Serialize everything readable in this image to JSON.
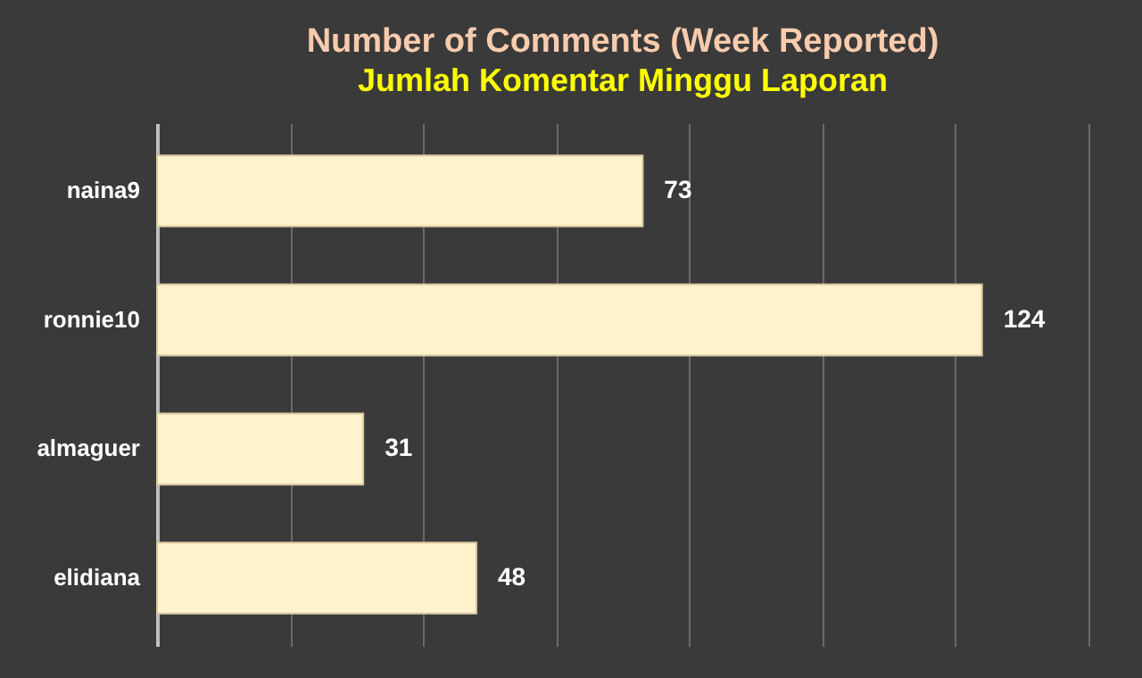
{
  "chart_data": {
    "type": "bar",
    "orientation": "horizontal",
    "title": "Number of Comments (Week Reported)",
    "subtitle": "Jumlah Komentar Minggu Laporan",
    "categories": [
      "naina9",
      "ronnie10",
      "almaguer",
      "elidiana"
    ],
    "values": [
      73,
      124,
      31,
      48
    ],
    "color": "#fff2cc",
    "data_labels": true,
    "xlim": [
      0,
      140
    ],
    "xticks": [
      {
        "value": 20,
        "label": null
      },
      {
        "value": 40,
        "label": null
      },
      {
        "value": 60,
        "label": null
      },
      {
        "value": 80,
        "label": null
      },
      {
        "value": 100,
        "label": null
      },
      {
        "value": 120,
        "label": null
      },
      {
        "value": 140,
        "label": null
      }
    ],
    "grid": "x",
    "tick_labels": "y"
  }
}
